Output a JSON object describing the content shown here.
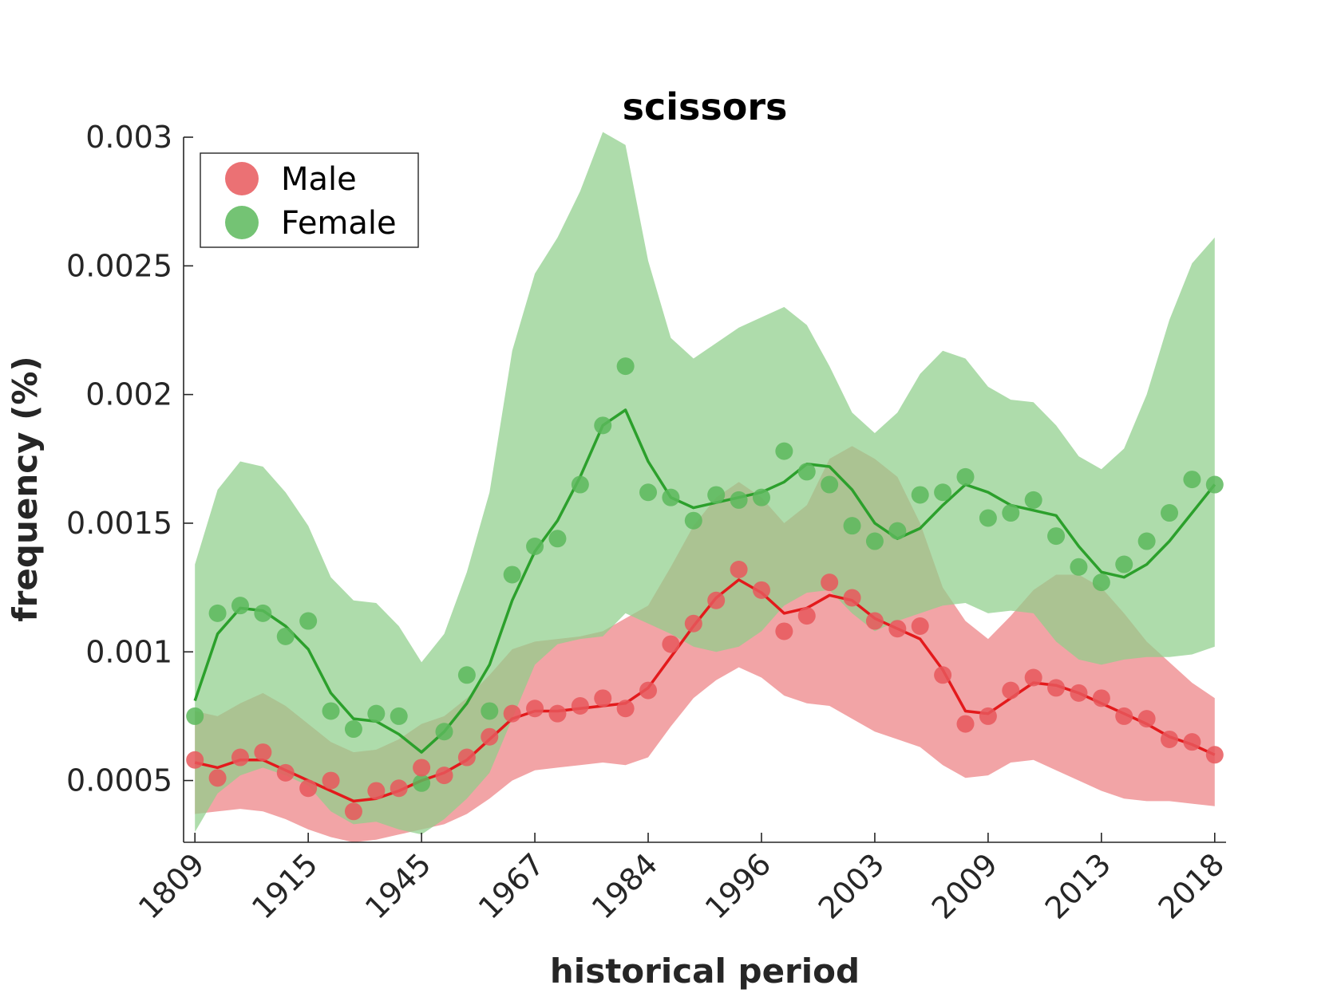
{
  "chart_data": {
    "type": "line",
    "title": "scissors",
    "xlabel": "historical period",
    "ylabel": "frequency (%)",
    "ylim": [
      0.00026,
      0.003
    ],
    "xlim": [
      -1,
      91
    ],
    "yticks": [
      0.0005,
      0.001,
      0.0015,
      0.002,
      0.0025,
      0.003
    ],
    "ytick_labels": [
      "0.0005",
      "0.001",
      "0.0015",
      "0.002",
      "0.0025",
      "0.003"
    ],
    "xticks": [
      0,
      10,
      20,
      30,
      40,
      50,
      60,
      70,
      80,
      90
    ],
    "xtick_labels": [
      "1809",
      "1915",
      "1945",
      "1967",
      "1984",
      "1996",
      "2003",
      "2009",
      "2013",
      "2018"
    ],
    "legend": {
      "position": "top-left",
      "entries": [
        "Male",
        "Female"
      ]
    },
    "grid": false,
    "colors": {
      "male_point": "#e8585c",
      "male_line": "#e31a1c",
      "male_band": "#ef8d90",
      "female_point": "#5cb85c",
      "female_line": "#2ca02c",
      "female_band": "#8fcf8a"
    },
    "x": [
      0,
      2,
      4,
      6,
      8,
      10,
      12,
      14,
      16,
      18,
      20,
      22,
      24,
      26,
      28,
      30,
      32,
      34,
      36,
      38,
      40,
      42,
      44,
      46,
      48,
      50,
      52,
      54,
      56,
      58,
      60,
      62,
      64,
      66,
      68,
      70,
      72,
      74,
      76,
      78,
      80,
      82,
      84,
      86,
      88,
      90
    ],
    "series": [
      {
        "name": "Male",
        "points": [
          0.00058,
          0.00051,
          0.00059,
          0.00061,
          0.00053,
          0.00047,
          0.0005,
          0.00038,
          0.00046,
          0.00047,
          0.00055,
          0.00052,
          0.00059,
          0.00067,
          0.00076,
          0.00078,
          0.00076,
          0.00079,
          0.00082,
          0.00078,
          0.00085,
          0.00103,
          0.00111,
          0.0012,
          0.00132,
          0.00124,
          0.00108,
          0.00114,
          0.00127,
          0.00121,
          0.00112,
          0.00109,
          0.0011,
          0.00091,
          0.00072,
          0.00075,
          0.00085,
          0.0009,
          0.00086,
          0.00084,
          0.00082,
          0.00075,
          0.00074,
          0.00066,
          0.00065,
          0.0006
        ],
        "trend": [
          0.00057,
          0.00055,
          0.00058,
          0.00058,
          0.00054,
          0.0005,
          0.00046,
          0.00042,
          0.00043,
          0.00046,
          0.0005,
          0.00053,
          0.00058,
          0.00066,
          0.00074,
          0.00077,
          0.00077,
          0.00078,
          0.00079,
          0.0008,
          0.00086,
          0.00098,
          0.0011,
          0.00121,
          0.00128,
          0.00123,
          0.00115,
          0.00117,
          0.00122,
          0.0012,
          0.00113,
          0.00109,
          0.00105,
          0.00093,
          0.00077,
          0.00076,
          0.00082,
          0.00088,
          0.00087,
          0.00084,
          0.0008,
          0.00076,
          0.00072,
          0.00067,
          0.00064,
          0.0006
        ],
        "band_upper": [
          0.00077,
          0.00075,
          0.0008,
          0.00084,
          0.00079,
          0.00072,
          0.00065,
          0.00061,
          0.00062,
          0.00066,
          0.00072,
          0.00075,
          0.00082,
          0.00091,
          0.00101,
          0.00104,
          0.00105,
          0.00106,
          0.00108,
          0.00113,
          0.00118,
          0.00133,
          0.00149,
          0.0016,
          0.00166,
          0.0016,
          0.0015,
          0.00157,
          0.00175,
          0.0018,
          0.00175,
          0.00168,
          0.0015,
          0.00125,
          0.00112,
          0.00105,
          0.00114,
          0.00124,
          0.0013,
          0.0013,
          0.00125,
          0.00115,
          0.00104,
          0.00096,
          0.00088,
          0.00082
        ],
        "band_lower": [
          0.00037,
          0.00038,
          0.00039,
          0.00038,
          0.00035,
          0.00031,
          0.00028,
          0.00026,
          0.00027,
          0.00029,
          0.00031,
          0.00033,
          0.00037,
          0.00043,
          0.0005,
          0.00054,
          0.00055,
          0.00056,
          0.00057,
          0.00056,
          0.00059,
          0.00071,
          0.00082,
          0.00089,
          0.00094,
          0.0009,
          0.00083,
          0.0008,
          0.00079,
          0.00074,
          0.00069,
          0.00066,
          0.00063,
          0.00056,
          0.00051,
          0.00052,
          0.00057,
          0.00058,
          0.00054,
          0.0005,
          0.00046,
          0.00043,
          0.00042,
          0.00042,
          0.00041,
          0.0004
        ]
      },
      {
        "name": "Female",
        "points": [
          0.00075,
          0.00115,
          0.00118,
          0.00115,
          0.00106,
          0.00112,
          0.00077,
          0.0007,
          0.00076,
          0.00075,
          0.00049,
          0.00069,
          0.00091,
          0.00077,
          0.0013,
          0.00141,
          0.00144,
          0.00165,
          0.00188,
          0.00211,
          0.00162,
          0.0016,
          0.00151,
          0.00161,
          0.00159,
          0.0016,
          0.00178,
          0.0017,
          0.00165,
          0.00149,
          0.00143,
          0.00147,
          0.00161,
          0.00162,
          0.00168,
          0.00152,
          0.00154,
          0.00159,
          0.00145,
          0.00133,
          0.00127,
          0.00134,
          0.00143,
          0.00154,
          0.00167,
          0.00165
        ],
        "trend": [
          0.00081,
          0.00107,
          0.00117,
          0.00116,
          0.0011,
          0.00101,
          0.00084,
          0.00074,
          0.00073,
          0.00068,
          0.00061,
          0.00069,
          0.0008,
          0.00095,
          0.0012,
          0.00139,
          0.00151,
          0.00168,
          0.00188,
          0.00194,
          0.00174,
          0.0016,
          0.00156,
          0.00158,
          0.0016,
          0.00162,
          0.00166,
          0.00173,
          0.00172,
          0.00163,
          0.0015,
          0.00144,
          0.00148,
          0.00157,
          0.00165,
          0.00162,
          0.00157,
          0.00155,
          0.00153,
          0.00141,
          0.00131,
          0.00129,
          0.00134,
          0.00143,
          0.00154,
          0.00165
        ],
        "band_upper": [
          0.00134,
          0.00163,
          0.00174,
          0.00172,
          0.00162,
          0.00149,
          0.00129,
          0.0012,
          0.00119,
          0.0011,
          0.00096,
          0.00107,
          0.00131,
          0.00162,
          0.00217,
          0.00247,
          0.00261,
          0.00279,
          0.00302,
          0.00297,
          0.00252,
          0.00222,
          0.00214,
          0.0022,
          0.00226,
          0.0023,
          0.00234,
          0.00227,
          0.00211,
          0.00193,
          0.00185,
          0.00193,
          0.00208,
          0.00217,
          0.00214,
          0.00203,
          0.00198,
          0.00197,
          0.00188,
          0.00176,
          0.00171,
          0.00179,
          0.002,
          0.00229,
          0.00251,
          0.00261
        ],
        "band_lower": [
          0.0003,
          0.00045,
          0.00052,
          0.00055,
          0.00052,
          0.00048,
          0.00038,
          0.00033,
          0.00034,
          0.00031,
          0.00029,
          0.00035,
          0.00043,
          0.00053,
          0.00074,
          0.00095,
          0.00103,
          0.00105,
          0.00106,
          0.00115,
          0.00111,
          0.00107,
          0.00102,
          0.001,
          0.00102,
          0.00108,
          0.00118,
          0.00123,
          0.00124,
          0.00115,
          0.00108,
          0.00112,
          0.00115,
          0.00118,
          0.00119,
          0.00115,
          0.00116,
          0.00115,
          0.00104,
          0.00097,
          0.00095,
          0.00097,
          0.00098,
          0.00098,
          0.00099,
          0.00102
        ]
      }
    ]
  }
}
